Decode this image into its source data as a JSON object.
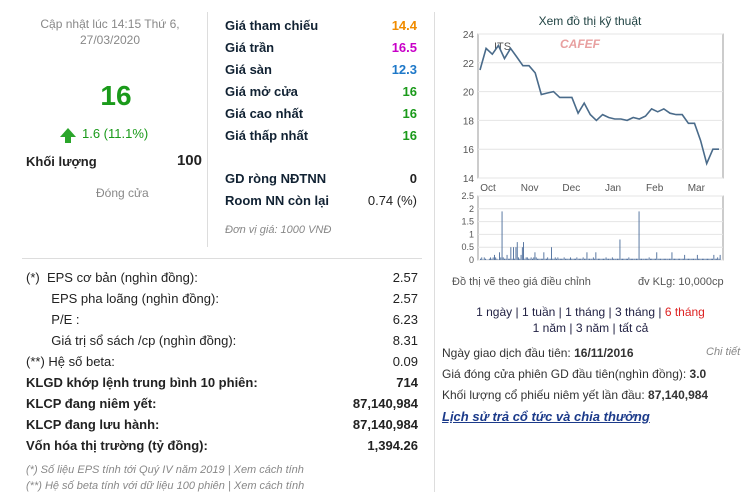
{
  "update": {
    "line1": "Cập nhật lúc 14:15 Thứ 6,",
    "line2": "27/03/2020"
  },
  "price": {
    "current": "16",
    "change": "1.6 (11.1%)",
    "volume_label": "Khối lượng",
    "volume": "100",
    "closed_label": "Đóng cửa"
  },
  "price_table": [
    {
      "label": "Giá tham chiếu",
      "value": "14.4",
      "color": "#f08c00"
    },
    {
      "label": "Giá trần",
      "value": "16.5",
      "color": "#c800c8"
    },
    {
      "label": "Giá sàn",
      "value": "12.3",
      "color": "#1e78c8"
    },
    {
      "label": "Giá mở cửa",
      "value": "16",
      "color": "#1a9a1a"
    },
    {
      "label": "Giá cao nhất",
      "value": "16",
      "color": "#1a9a1a"
    },
    {
      "label": "Giá thấp nhất",
      "value": "16",
      "color": "#1a9a1a"
    }
  ],
  "foreign": [
    {
      "label": "GD ròng NĐTNN",
      "value": "0"
    },
    {
      "label": "Room NN còn lại",
      "value": "0.74 (%)"
    }
  ],
  "unit_note": "Đơn vị giá: 1000 VNĐ",
  "fundamentals": [
    {
      "label": "(*)  EPS cơ bản (nghìn đồng):",
      "value": "2.57",
      "bold": false
    },
    {
      "label": "       EPS pha loãng (nghìn đồng):",
      "value": "2.57",
      "bold": false
    },
    {
      "label": "       P/E :",
      "value": "6.23",
      "bold": false
    },
    {
      "label": "       Giá trị sổ sách /cp (nghìn đồng):",
      "value": "8.31",
      "bold": false
    },
    {
      "label": "(**) Hệ số beta:",
      "value": "0.09",
      "bold": false
    },
    {
      "label": "KLGD khớp lệnh trung bình 10 phiên:",
      "value": "714",
      "bold": true
    },
    {
      "label": "KLCP đang niêm yết:",
      "value": "87,140,984",
      "bold": true
    },
    {
      "label": "KLCP đang lưu hành:",
      "value": "87,140,984",
      "bold": true
    },
    {
      "label": "Vốn hóa thị trường (tỷ đồng):",
      "value": "1,394.26",
      "bold": true
    }
  ],
  "notes": [
    "(*) Số liệu EPS tính tới Quý IV năm 2019 | Xem cách tính",
    "(**) Hệ số beta tính với dữ liệu 100 phiên | Xem cách tính"
  ],
  "chart": {
    "title": "Xem đồ thị kỹ thuật",
    "ticker": "ITS",
    "watermark": "CAFEF",
    "note": "Đồ thị vẽ theo giá điều chỉnh",
    "unit": "đv KLg: 10,000cp",
    "line_color": "#4a6b8a"
  },
  "chart_data": [
    {
      "type": "line",
      "title": "ITS",
      "x_ticks": [
        "Oct",
        "Nov",
        "Dec",
        "Jan",
        "Feb",
        "Mar"
      ],
      "y_ticks": [
        "24",
        "22",
        "20",
        "18",
        "16",
        "14"
      ],
      "ylim": [
        14,
        24
      ],
      "x": [
        "Oct",
        "Oct",
        "Oct",
        "Oct",
        "Oct",
        "Oct",
        "Oct",
        "Oct",
        "Nov",
        "Nov",
        "Nov",
        "Nov",
        "Nov",
        "Nov",
        "Nov",
        "Dec",
        "Dec",
        "Dec",
        "Dec",
        "Dec",
        "Dec",
        "Dec",
        "Dec",
        "Jan",
        "Jan",
        "Jan",
        "Jan",
        "Feb",
        "Feb",
        "Feb",
        "Feb",
        "Feb",
        "Mar",
        "Mar",
        "Mar",
        "Mar",
        "Mar",
        "Mar",
        "Mar",
        "Mar"
      ],
      "values": [
        21.5,
        23.0,
        22.6,
        23.2,
        22.3,
        23.0,
        22.4,
        21.8,
        21.8,
        21.3,
        19.8,
        19.9,
        20.0,
        19.6,
        19.6,
        19.6,
        18.5,
        19.2,
        18.4,
        18.0,
        18.4,
        18.2,
        18.1,
        18.1,
        18.0,
        18.2,
        18.1,
        18.3,
        18.8,
        18.6,
        18.8,
        18.5,
        18.4,
        18.4,
        17.8,
        17.8,
        16.6,
        15.0,
        16.0,
        16.0
      ]
    },
    {
      "type": "bar",
      "title": "",
      "y_ticks": [
        "2.5",
        "2",
        "1.5",
        "1",
        "0.5",
        "0"
      ],
      "ylim": [
        0,
        2.5
      ],
      "values": [
        0.05,
        0.1,
        0.02,
        0.1,
        0.05,
        0.02,
        0.02,
        0.05,
        0.1,
        0.05,
        0.1,
        0.2,
        0.1,
        0.05,
        0.02,
        0.3,
        0.1,
        1.9,
        0.1,
        0.05,
        0.05,
        0.2,
        0.05,
        0.05,
        0.5,
        0.05,
        0.5,
        0.05,
        0.5,
        0.7,
        0.1,
        0.05,
        0.2,
        0.5,
        0.7,
        0.05,
        0.1,
        0.1,
        0.05,
        0.05,
        0.1,
        0.05,
        0.1,
        0.3,
        0.1,
        0.05,
        0.05,
        0.05,
        0.05,
        0.05,
        0.3,
        0.05,
        0.05,
        0.1,
        0.05,
        0.05,
        0.5,
        0.05,
        0.05,
        0.1,
        0.05,
        0.1,
        0.05,
        0.05,
        0.05,
        0.05,
        0.1,
        0.05,
        0.05,
        0.05,
        0.05,
        0.1,
        0.05,
        0.05,
        0.05,
        0.05,
        0.1,
        0.05,
        0.05,
        0.05,
        0.05,
        0.1,
        0.05,
        0.05,
        0.3,
        0.05,
        0.05,
        0.05,
        0.05,
        0.1,
        0.05,
        0.3,
        0.05,
        0.05,
        0.05,
        0.05,
        0.05,
        0.05,
        0.05,
        0.1,
        0.05,
        0.05,
        0.05,
        0.05,
        0.1,
        0.05,
        0.05,
        0.05,
        0.05,
        0.05,
        0.8,
        0.05,
        0.05,
        0.05,
        0.05,
        0.05,
        0.05,
        0.1,
        0.05,
        0.05,
        0.05,
        0.05,
        0.05,
        0.05,
        0.05,
        1.9,
        0.05,
        0.05,
        0.05,
        0.05,
        0.05,
        0.05,
        0.05,
        0.1,
        0.05,
        0.05,
        0.05,
        0.05,
        0.05,
        0.3,
        0.05,
        0.05,
        0.05,
        0.05,
        0.05,
        0.05,
        0.05,
        0.05,
        0.05,
        0.05,
        0.05,
        0.3,
        0.05,
        0.05,
        0.05,
        0.05,
        0.05,
        0.05,
        0.05,
        0.05,
        0.05,
        0.2,
        0.05,
        0.05,
        0.05,
        0.05,
        0.05,
        0.05,
        0.05,
        0.05,
        0.05,
        0.2,
        0.05,
        0.05,
        0.05,
        0.05,
        0.05,
        0.05,
        0.05,
        0.05,
        0.05,
        0.05,
        0.05,
        0.05,
        0.2,
        0.05,
        0.05,
        0.1,
        0.05,
        0.2
      ]
    }
  ],
  "periods": {
    "row1": [
      {
        "label": "1 ngày",
        "active": false
      },
      {
        "label": "1 tuần",
        "active": false
      },
      {
        "label": "1 tháng",
        "active": false
      },
      {
        "label": "3 tháng",
        "active": false
      },
      {
        "label": "6 tháng",
        "active": true
      }
    ],
    "row2": [
      {
        "label": "1 năm",
        "active": false
      },
      {
        "label": "3 năm",
        "active": false
      },
      {
        "label": "tất cả",
        "active": false
      }
    ]
  },
  "listing": {
    "first_day_label": "Ngày giao dịch đầu tiên:",
    "first_day": "16/11/2016",
    "detail": "Chi tiết",
    "first_price_label": "Giá đóng cửa phiên GD đầu tiên(nghìn đồng):",
    "first_price": "3.0",
    "first_volume_label": "Khối lượng cổ phiếu niêm yết lần đầu:",
    "first_volume": "87,140,984",
    "dividend_link": "Lịch sử trả cổ tức và chia thưởng"
  }
}
